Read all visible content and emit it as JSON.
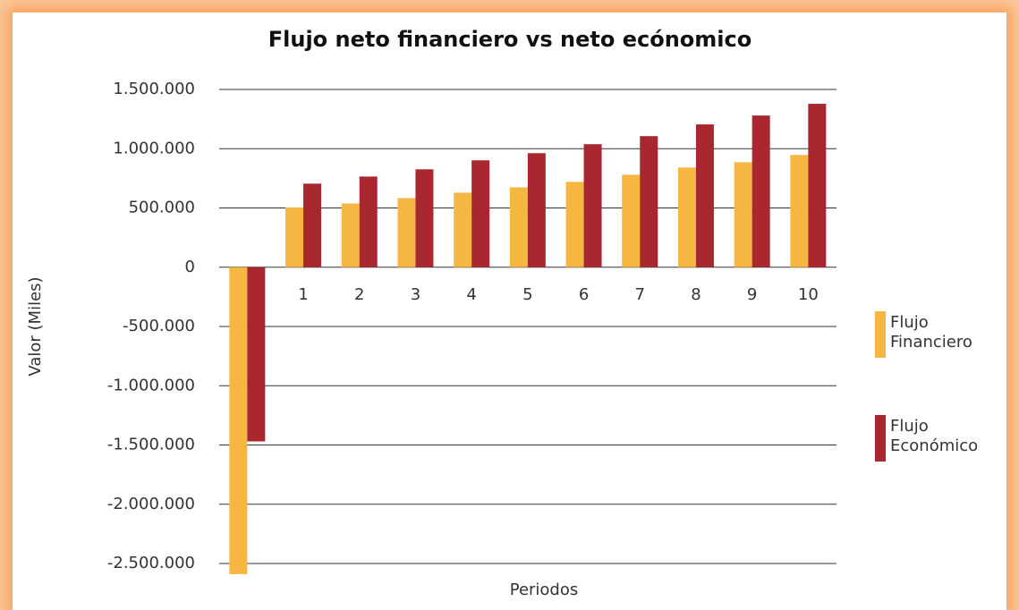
{
  "chart_data": {
    "type": "bar",
    "title": "Flujo neto financiero vs neto ecónomico",
    "xlabel": "Periodos",
    "ylabel": "Valor (Miles)",
    "categories": [
      null,
      "1",
      "2",
      "3",
      "4",
      "5",
      "6",
      "7",
      "8",
      "9",
      "10"
    ],
    "series": [
      {
        "name": "Flujo Financiero",
        "color": "#f5b642",
        "values": [
          -2590000,
          505000,
          538000,
          583000,
          629000,
          674000,
          720000,
          780000,
          841000,
          886000,
          947000
        ]
      },
      {
        "name": "Flujo Económico",
        "color": "#a9272f",
        "values": [
          -1470000,
          705000,
          765000,
          826000,
          902000,
          962000,
          1038000,
          1106000,
          1205000,
          1280000,
          1379000
        ]
      }
    ],
    "ylim": [
      -2600000,
      1500000
    ],
    "yticks": [
      {
        "value": -2500000,
        "label": "-2.500.000"
      },
      {
        "value": -2000000,
        "label": "-2.000.000"
      },
      {
        "value": -1500000,
        "label": "-1.500.000"
      },
      {
        "value": -1000000,
        "label": "-1.000.000"
      },
      {
        "value": -500000,
        "label": "-500.000"
      },
      0,
      {
        "value": 500000,
        "label": "500.000"
      },
      {
        "value": 1000000,
        "label": "1.000.000"
      },
      {
        "value": 1500000,
        "label": "1.500.000"
      }
    ],
    "grid": true,
    "legend": "right"
  }
}
